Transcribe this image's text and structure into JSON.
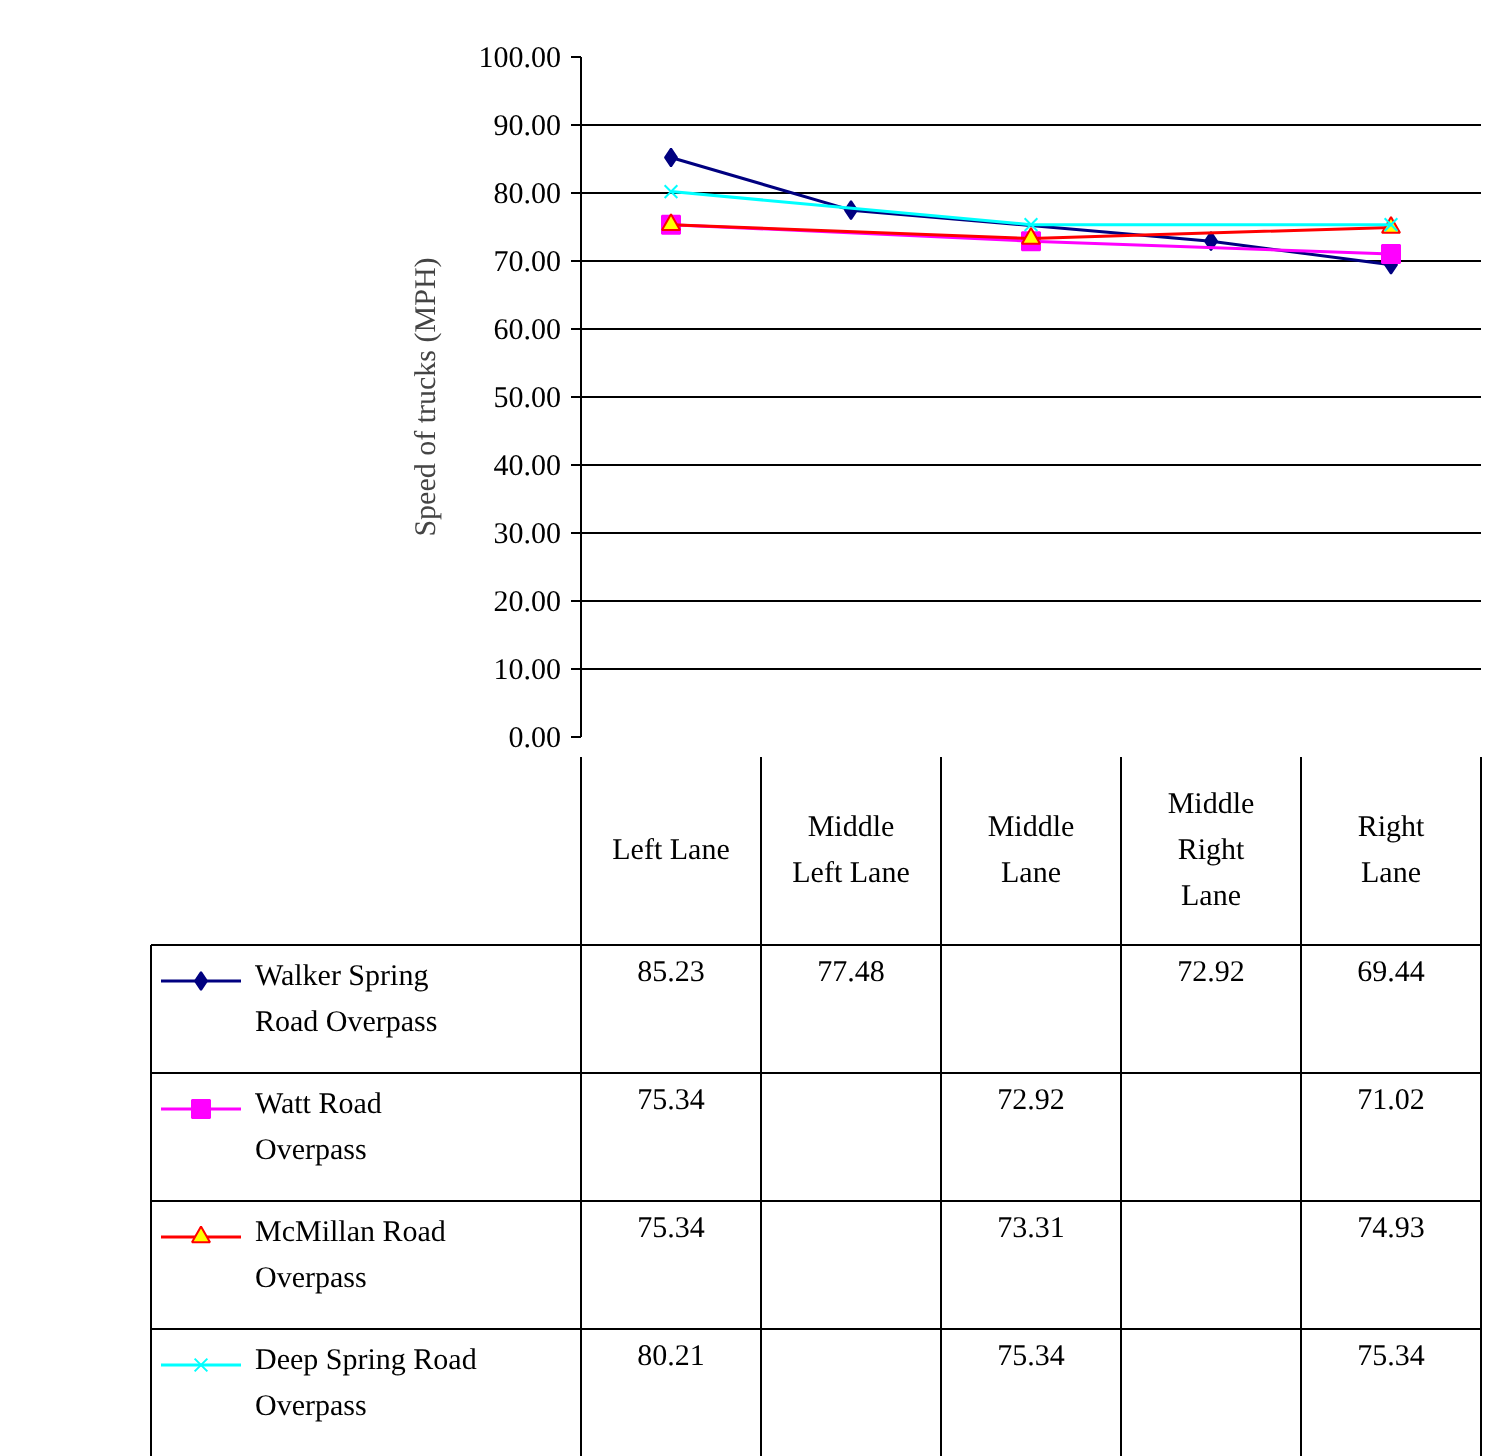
{
  "chart_data": {
    "type": "line",
    "ylabel": "Speed of trucks (MPH)",
    "categories": [
      "Left Lane",
      "Middle Left Lane",
      "Middle Lane",
      "Middle Right Lane",
      "Right Lane"
    ],
    "series": [
      {
        "name": "Walker Spring Road Overpass",
        "color": "#000080",
        "marker": "diamond",
        "values": [
          85.23,
          77.48,
          null,
          72.92,
          69.44
        ]
      },
      {
        "name": "Watt Road Overpass",
        "color": "#ff00ff",
        "marker": "square",
        "values": [
          75.34,
          null,
          72.92,
          null,
          71.02
        ]
      },
      {
        "name": "McMillan Road Overpass",
        "color": "#ff0000",
        "marker": "triangle",
        "values": [
          75.34,
          null,
          73.31,
          null,
          74.93
        ]
      },
      {
        "name": "Deep Spring Road Overpass",
        "color": "#00ffff",
        "marker": "cross",
        "values": [
          80.21,
          null,
          75.34,
          null,
          75.34
        ]
      }
    ],
    "ylim": [
      0,
      100
    ],
    "yticks": [
      {
        "value": 0,
        "label": "0.00"
      },
      {
        "value": 10,
        "label": "10.00"
      },
      {
        "value": 20,
        "label": "20.00"
      },
      {
        "value": 30,
        "label": "30.00"
      },
      {
        "value": 40,
        "label": "40.00"
      },
      {
        "value": 50,
        "label": "50.00"
      },
      {
        "value": 60,
        "label": "60.00"
      },
      {
        "value": 70,
        "label": "70.00"
      },
      {
        "value": 80,
        "label": "80.00"
      },
      {
        "value": 90,
        "label": "90.00"
      },
      {
        "value": 100,
        "label": "100.00"
      }
    ],
    "grid": "y",
    "legend": "bottom",
    "data_labels": true
  }
}
